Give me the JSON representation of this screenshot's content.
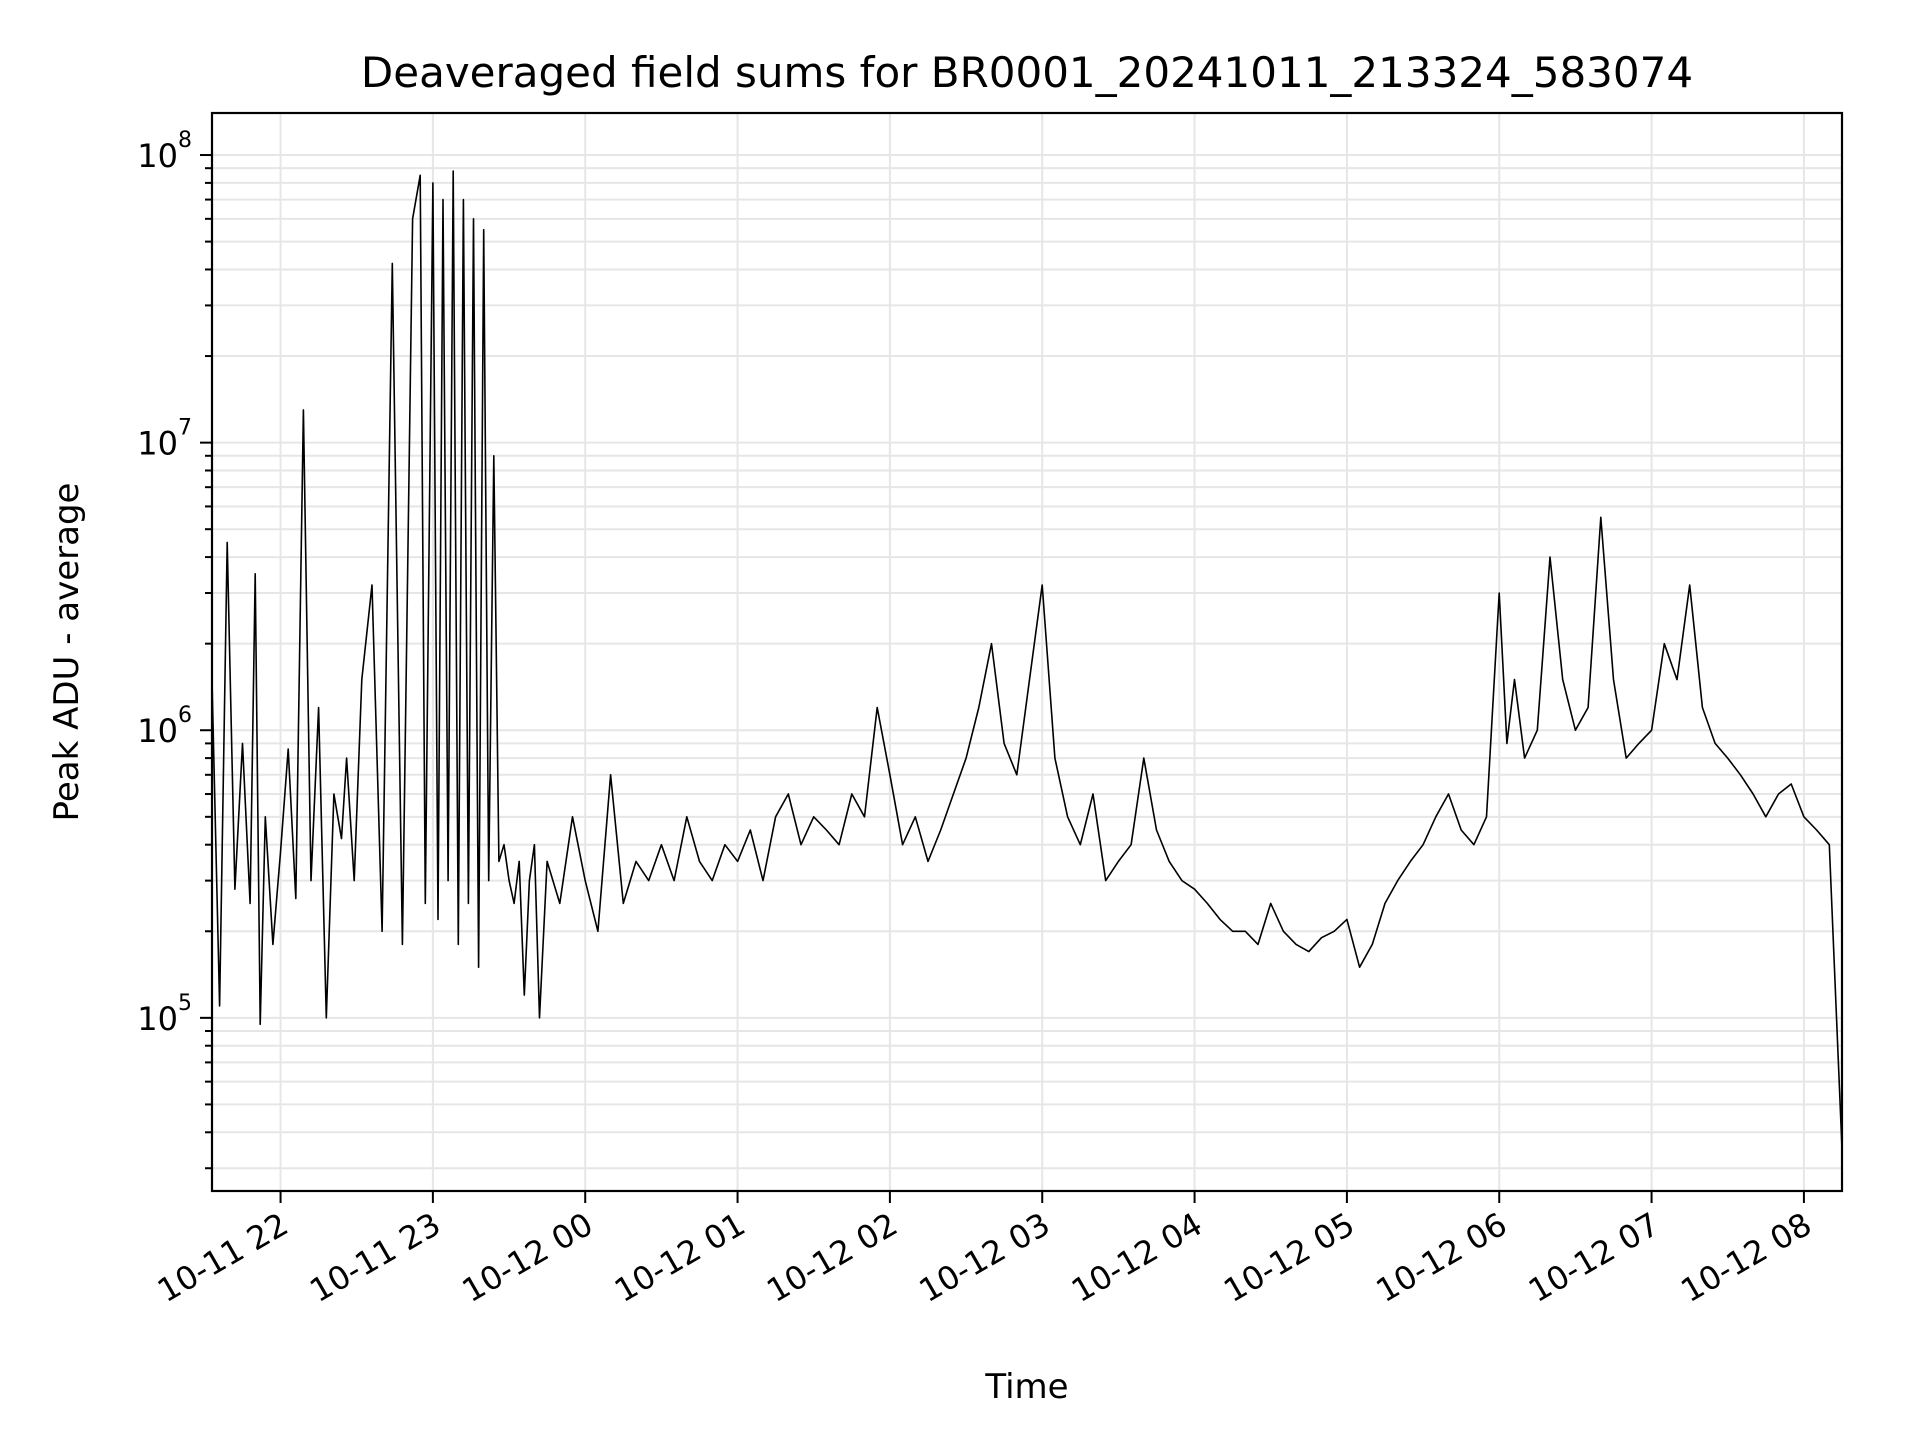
{
  "chart_data": {
    "type": "line",
    "title": "Deaveraged field sums for BR0001_20241011_213324_583074",
    "xlabel": "Time",
    "ylabel": "Peak ADU - average",
    "yscale": "log",
    "ylim": [
      25000,
      140000000
    ],
    "xlim": [
      "2024-10-11 21:33",
      "2024-10-12 08:15"
    ],
    "grid": true,
    "line_color": "#000000",
    "x_ticks": [
      {
        "label": "10-11 22",
        "t": "2024-10-11 22:00"
      },
      {
        "label": "10-11 23",
        "t": "2024-10-11 23:00"
      },
      {
        "label": "10-12 00",
        "t": "2024-10-12 00:00"
      },
      {
        "label": "10-12 01",
        "t": "2024-10-12 01:00"
      },
      {
        "label": "10-12 02",
        "t": "2024-10-12 02:00"
      },
      {
        "label": "10-12 03",
        "t": "2024-10-12 03:00"
      },
      {
        "label": "10-12 04",
        "t": "2024-10-12 04:00"
      },
      {
        "label": "10-12 05",
        "t": "2024-10-12 05:00"
      },
      {
        "label": "10-12 06",
        "t": "2024-10-12 06:00"
      },
      {
        "label": "10-12 07",
        "t": "2024-10-12 07:00"
      },
      {
        "label": "10-12 08",
        "t": "2024-10-12 08:00"
      }
    ],
    "y_ticks": [
      {
        "base": "10",
        "exp": "5",
        "value": 100000
      },
      {
        "base": "10",
        "exp": "6",
        "value": 1000000
      },
      {
        "base": "10",
        "exp": "7",
        "value": 10000000
      },
      {
        "base": "10",
        "exp": "8",
        "value": 100000000
      }
    ],
    "series": [
      {
        "x": [
          "2024-10-11 21:33",
          "2024-10-11 21:36",
          "2024-10-11 21:39",
          "2024-10-11 21:42",
          "2024-10-11 21:45",
          "2024-10-11 21:48",
          "2024-10-11 21:50",
          "2024-10-11 21:52",
          "2024-10-11 21:54",
          "2024-10-11 21:57",
          "2024-10-11 22:00",
          "2024-10-11 22:03",
          "2024-10-11 22:06",
          "2024-10-11 22:09",
          "2024-10-11 22:12",
          "2024-10-11 22:15",
          "2024-10-11 22:18",
          "2024-10-11 22:21",
          "2024-10-11 22:24",
          "2024-10-11 22:26",
          "2024-10-11 22:29",
          "2024-10-11 22:32",
          "2024-10-11 22:36",
          "2024-10-11 22:40",
          "2024-10-11 22:44",
          "2024-10-11 22:48",
          "2024-10-11 22:52",
          "2024-10-11 22:55",
          "2024-10-11 22:57",
          "2024-10-11 23:00",
          "2024-10-11 23:02",
          "2024-10-11 23:04",
          "2024-10-11 23:06",
          "2024-10-11 23:08",
          "2024-10-11 23:10",
          "2024-10-11 23:12",
          "2024-10-11 23:14",
          "2024-10-11 23:16",
          "2024-10-11 23:18",
          "2024-10-11 23:20",
          "2024-10-11 23:22",
          "2024-10-11 23:24",
          "2024-10-11 23:26",
          "2024-10-11 23:28",
          "2024-10-11 23:30",
          "2024-10-11 23:32",
          "2024-10-11 23:34",
          "2024-10-11 23:36",
          "2024-10-11 23:38",
          "2024-10-11 23:40",
          "2024-10-11 23:42",
          "2024-10-11 23:45",
          "2024-10-11 23:50",
          "2024-10-11 23:55",
          "2024-10-12 00:00",
          "2024-10-12 00:05",
          "2024-10-12 00:10",
          "2024-10-12 00:15",
          "2024-10-12 00:20",
          "2024-10-12 00:25",
          "2024-10-12 00:30",
          "2024-10-12 00:35",
          "2024-10-12 00:40",
          "2024-10-12 00:45",
          "2024-10-12 00:50",
          "2024-10-12 00:55",
          "2024-10-12 01:00",
          "2024-10-12 01:05",
          "2024-10-12 01:10",
          "2024-10-12 01:15",
          "2024-10-12 01:20",
          "2024-10-12 01:25",
          "2024-10-12 01:30",
          "2024-10-12 01:35",
          "2024-10-12 01:40",
          "2024-10-12 01:45",
          "2024-10-12 01:50",
          "2024-10-12 01:55",
          "2024-10-12 02:00",
          "2024-10-12 02:05",
          "2024-10-12 02:10",
          "2024-10-12 02:15",
          "2024-10-12 02:20",
          "2024-10-12 02:25",
          "2024-10-12 02:30",
          "2024-10-12 02:35",
          "2024-10-12 02:40",
          "2024-10-12 02:45",
          "2024-10-12 02:50",
          "2024-10-12 02:55",
          "2024-10-12 03:00",
          "2024-10-12 03:05",
          "2024-10-12 03:10",
          "2024-10-12 03:15",
          "2024-10-12 03:20",
          "2024-10-12 03:25",
          "2024-10-12 03:30",
          "2024-10-12 03:35",
          "2024-10-12 03:40",
          "2024-10-12 03:45",
          "2024-10-12 03:50",
          "2024-10-12 03:55",
          "2024-10-12 04:00",
          "2024-10-12 04:05",
          "2024-10-12 04:10",
          "2024-10-12 04:15",
          "2024-10-12 04:20",
          "2024-10-12 04:25",
          "2024-10-12 04:30",
          "2024-10-12 04:35",
          "2024-10-12 04:40",
          "2024-10-12 04:45",
          "2024-10-12 04:50",
          "2024-10-12 04:55",
          "2024-10-12 05:00",
          "2024-10-12 05:05",
          "2024-10-12 05:10",
          "2024-10-12 05:15",
          "2024-10-12 05:20",
          "2024-10-12 05:25",
          "2024-10-12 05:30",
          "2024-10-12 05:35",
          "2024-10-12 05:40",
          "2024-10-12 05:45",
          "2024-10-12 05:50",
          "2024-10-12 05:55",
          "2024-10-12 06:00",
          "2024-10-12 06:03",
          "2024-10-12 06:06",
          "2024-10-12 06:10",
          "2024-10-12 06:15",
          "2024-10-12 06:20",
          "2024-10-12 06:25",
          "2024-10-12 06:30",
          "2024-10-12 06:35",
          "2024-10-12 06:40",
          "2024-10-12 06:45",
          "2024-10-12 06:50",
          "2024-10-12 06:55",
          "2024-10-12 07:00",
          "2024-10-12 07:05",
          "2024-10-12 07:10",
          "2024-10-12 07:15",
          "2024-10-12 07:20",
          "2024-10-12 07:25",
          "2024-10-12 07:30",
          "2024-10-12 07:35",
          "2024-10-12 07:40",
          "2024-10-12 07:45",
          "2024-10-12 07:50",
          "2024-10-12 07:55",
          "2024-10-12 08:00",
          "2024-10-12 08:05",
          "2024-10-12 08:10",
          "2024-10-12 08:15"
        ],
        "y": [
          1500000,
          110000,
          4500000,
          280000,
          900000,
          250000,
          3500000,
          95000,
          500000,
          180000,
          380000,
          860000,
          260000,
          13000000,
          300000,
          1200000,
          100000,
          600000,
          420000,
          800000,
          300000,
          1500000,
          3200000,
          200000,
          42000000,
          180000,
          60000000,
          85000000,
          250000,
          80000000,
          220000,
          70000000,
          300000,
          88000000,
          180000,
          70000000,
          250000,
          60000000,
          150000,
          55000000,
          300000,
          9000000,
          350000,
          400000,
          300000,
          250000,
          350000,
          120000,
          300000,
          400000,
          100000,
          350000,
          250000,
          500000,
          300000,
          200000,
          700000,
          250000,
          350000,
          300000,
          400000,
          300000,
          500000,
          350000,
          300000,
          400000,
          350000,
          450000,
          300000,
          500000,
          600000,
          400000,
          500000,
          450000,
          400000,
          600000,
          500000,
          1200000,
          700000,
          400000,
          500000,
          350000,
          450000,
          600000,
          800000,
          1200000,
          2000000,
          900000,
          700000,
          1500000,
          3200000,
          800000,
          500000,
          400000,
          600000,
          300000,
          350000,
          400000,
          800000,
          450000,
          350000,
          300000,
          280000,
          250000,
          220000,
          200000,
          200000,
          180000,
          250000,
          200000,
          180000,
          170000,
          190000,
          200000,
          220000,
          150000,
          180000,
          250000,
          300000,
          350000,
          400000,
          500000,
          600000,
          450000,
          400000,
          500000,
          3000000,
          900000,
          1500000,
          800000,
          1000000,
          4000000,
          1500000,
          1000000,
          1200000,
          5500000,
          1500000,
          800000,
          900000,
          1000000,
          2000000,
          1500000,
          3200000,
          1200000,
          900000,
          800000,
          700000,
          600000,
          500000,
          600000,
          650000,
          500000,
          450000,
          400000,
          35000
        ]
      }
    ]
  }
}
